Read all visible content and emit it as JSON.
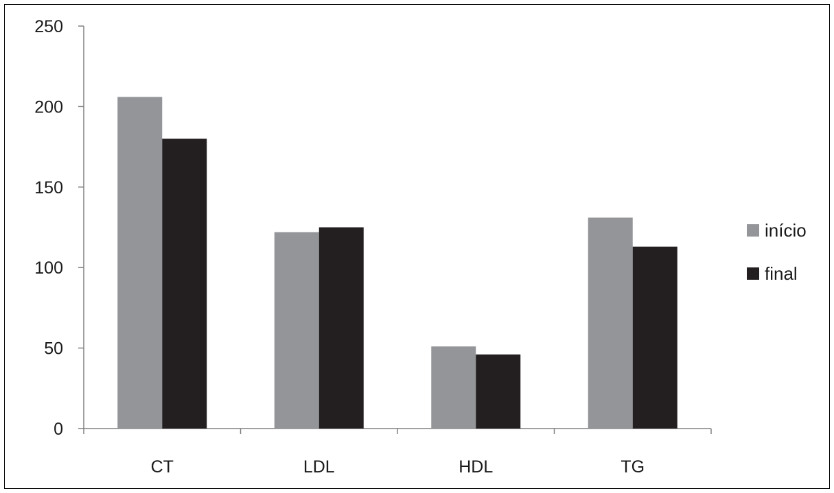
{
  "chart_data": {
    "type": "bar",
    "categories": [
      "CT",
      "LDL",
      "HDL",
      "TG"
    ],
    "series": [
      {
        "name": "início",
        "values": [
          206,
          122,
          51,
          131
        ],
        "color": "#939598"
      },
      {
        "name": "final",
        "values": [
          180,
          125,
          46,
          113
        ],
        "color": "#231f20"
      }
    ],
    "ylim": [
      0,
      250
    ],
    "yticks": [
      "0",
      "50",
      "100",
      "150",
      "200",
      "250"
    ],
    "grid": false,
    "legend_position": "right"
  }
}
